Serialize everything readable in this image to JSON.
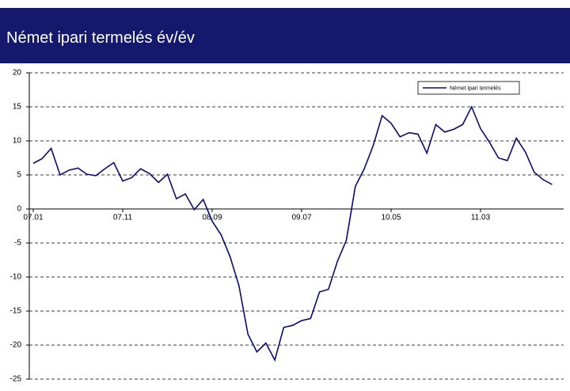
{
  "chart_data": {
    "type": "line",
    "title": "Német ipari termelés év/év",
    "categories": [
      "07.01",
      null,
      null,
      null,
      null,
      null,
      null,
      null,
      null,
      null,
      "07.11",
      null,
      null,
      null,
      null,
      null,
      null,
      null,
      null,
      null,
      "08.09",
      null,
      null,
      null,
      null,
      null,
      null,
      null,
      null,
      null,
      "09.07",
      null,
      null,
      null,
      null,
      null,
      null,
      null,
      null,
      null,
      "10.05",
      null,
      null,
      null,
      null,
      null,
      null,
      null,
      null,
      null,
      "11.03",
      null,
      null,
      null,
      null,
      null,
      null,
      null,
      null
    ],
    "series": [
      {
        "name": "Német ipari termelés",
        "color": "#0a0a78",
        "values": [
          6.7,
          7.4,
          8.9,
          5.0,
          5.7,
          6.0,
          5.1,
          4.9,
          5.9,
          6.8,
          4.1,
          4.6,
          5.9,
          5.2,
          3.9,
          5.1,
          1.5,
          2.2,
          -0.1,
          1.4,
          -1.8,
          -3.8,
          -7.0,
          -11.3,
          -18.4,
          -21.0,
          -19.7,
          -22.2,
          -17.4,
          -17.1,
          -16.4,
          -16.1,
          -12.2,
          -11.8,
          -7.7,
          -4.6,
          3.3,
          5.9,
          9.3,
          13.7,
          12.6,
          10.6,
          11.2,
          11.0,
          8.2,
          12.4,
          11.3,
          11.7,
          12.4,
          15.0,
          11.8,
          9.8,
          7.5,
          7.1,
          10.4,
          8.4,
          5.4,
          4.3,
          3.6
        ]
      }
    ],
    "ylim": [
      -25,
      20
    ],
    "yticks": [
      -25,
      -20,
      -15,
      -10,
      -5,
      0,
      5,
      10,
      15,
      20
    ],
    "grid": true,
    "legend": "upper right"
  }
}
